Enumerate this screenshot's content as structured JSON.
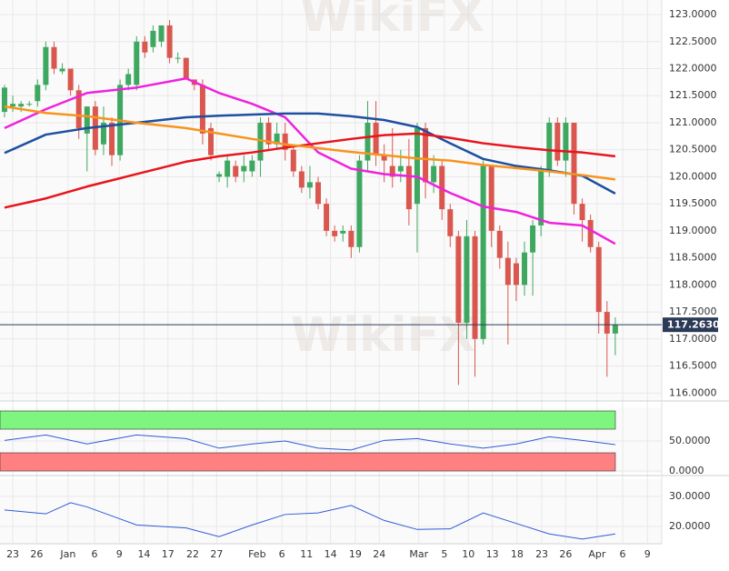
{
  "watermark": "WikiFX",
  "chart_data": [
    {
      "type": "candlestick",
      "x": [
        0,
        1,
        2,
        3,
        4,
        5,
        6,
        7,
        8,
        9,
        10,
        11,
        12,
        13,
        14,
        15,
        16,
        17,
        18,
        19,
        20,
        21,
        22,
        23,
        24,
        25,
        26,
        27,
        28,
        29,
        30,
        31,
        32,
        33,
        34,
        35,
        36,
        37,
        38,
        39,
        40,
        41,
        42,
        43,
        44,
        45,
        46,
        47,
        48,
        49,
        50,
        51,
        52,
        53,
        54,
        55,
        56,
        57,
        58,
        59,
        60,
        61,
        62,
        63,
        64,
        65,
        66,
        67,
        68,
        69,
        70,
        71,
        72,
        73,
        74
      ],
      "open": [
        121.2,
        121.3,
        121.3,
        121.35,
        121.4,
        121.7,
        122.4,
        121.95,
        122.0,
        121.6,
        120.8,
        121.3,
        120.6,
        121.0,
        120.4,
        121.7,
        121.7,
        122.5,
        122.4,
        122.5,
        122.8,
        122.2,
        122.2,
        121.8,
        121.7,
        120.9,
        120.0,
        120.0,
        120.2,
        120.1,
        120.1,
        120.3,
        121.0,
        120.6,
        120.8,
        120.5,
        120.1,
        119.8,
        119.9,
        119.5,
        119.0,
        118.95,
        119.0,
        118.7,
        120.3,
        121.0,
        120.4,
        120.2,
        120.1,
        120.2,
        119.5,
        120.9,
        119.9,
        120.2,
        119.4,
        118.9,
        117.3,
        118.9,
        117.0,
        120.2,
        119.0,
        118.5,
        118.4,
        118.0,
        118.6,
        119.1,
        120.1,
        121.0,
        120.3,
        121.0,
        119.5,
        119.2,
        118.7,
        117.5,
        117.1
      ],
      "high": [
        121.7,
        121.5,
        121.4,
        121.4,
        121.8,
        122.5,
        122.5,
        122.1,
        122.0,
        121.7,
        121.3,
        121.4,
        121.3,
        121.1,
        121.8,
        122.0,
        122.6,
        122.6,
        122.8,
        122.8,
        122.9,
        122.3,
        122.2,
        121.8,
        121.8,
        121.0,
        120.1,
        120.4,
        120.3,
        120.4,
        120.4,
        121.1,
        121.1,
        121.0,
        121.0,
        120.6,
        120.2,
        120.2,
        120.0,
        119.6,
        119.1,
        119.1,
        119.1,
        120.4,
        121.4,
        121.4,
        120.6,
        120.9,
        120.5,
        120.7,
        121.0,
        121.0,
        120.4,
        120.3,
        119.5,
        119.0,
        119.2,
        119.0,
        120.3,
        120.2,
        119.1,
        118.8,
        118.5,
        118.8,
        119.2,
        120.2,
        121.1,
        121.1,
        121.1,
        121.0,
        119.6,
        119.3,
        118.8,
        117.7,
        117.4
      ],
      "low": [
        121.1,
        121.2,
        121.2,
        121.3,
        121.3,
        121.6,
        121.9,
        121.9,
        121.5,
        120.7,
        120.1,
        120.4,
        120.4,
        120.2,
        120.3,
        121.6,
        121.6,
        122.2,
        122.3,
        122.4,
        122.1,
        122.1,
        121.8,
        121.6,
        120.6,
        120.3,
        119.9,
        119.8,
        119.9,
        119.9,
        120.0,
        120.0,
        120.5,
        120.5,
        120.3,
        120.0,
        119.7,
        119.6,
        119.4,
        118.9,
        118.8,
        118.8,
        118.5,
        118.6,
        120.1,
        120.2,
        119.9,
        119.8,
        119.9,
        119.1,
        118.6,
        119.6,
        119.7,
        119.2,
        118.7,
        116.15,
        117.0,
        116.3,
        116.9,
        118.7,
        118.3,
        116.9,
        117.7,
        117.8,
        117.8,
        118.9,
        120.0,
        120.2,
        120.0,
        119.3,
        118.8,
        118.6,
        117.1,
        116.3,
        116.7
      ],
      "close": [
        121.65,
        121.35,
        121.35,
        121.35,
        121.7,
        122.4,
        122.0,
        122.0,
        121.6,
        120.9,
        121.3,
        120.5,
        121.0,
        120.4,
        121.7,
        121.9,
        122.5,
        122.3,
        122.7,
        122.8,
        122.2,
        122.2,
        121.8,
        121.7,
        120.8,
        120.4,
        120.05,
        120.3,
        120.0,
        120.2,
        120.3,
        121.0,
        120.6,
        120.8,
        120.5,
        120.1,
        119.8,
        119.9,
        119.5,
        119.0,
        118.9,
        119.0,
        118.7,
        120.3,
        121.0,
        120.4,
        120.3,
        120.0,
        120.2,
        119.4,
        120.9,
        119.9,
        120.2,
        119.4,
        118.9,
        117.3,
        118.9,
        117.0,
        120.2,
        119.0,
        118.5,
        118.0,
        118.0,
        118.6,
        119.1,
        120.1,
        121.0,
        120.3,
        121.0,
        119.5,
        119.2,
        118.7,
        117.5,
        117.1,
        117.263
      ],
      "up_color": "#3fa860",
      "down_color": "#d9574e",
      "series": [
        {
          "color": "#ee22dd",
          "x": [
            0,
            5,
            10,
            16,
            22,
            26,
            30,
            34,
            38,
            42,
            46,
            50,
            54,
            58,
            62,
            66,
            70,
            74
          ],
          "values": [
            120.9,
            121.25,
            121.55,
            121.65,
            121.82,
            121.55,
            121.35,
            121.1,
            120.45,
            120.15,
            120.05,
            120.0,
            119.7,
            119.45,
            119.35,
            119.15,
            119.1,
            118.76
          ]
        },
        {
          "color": "#1e4fa0",
          "x": [
            0,
            5,
            10,
            16,
            22,
            26,
            30,
            34,
            38,
            42,
            46,
            50,
            54,
            58,
            62,
            66,
            70,
            74
          ],
          "values": [
            120.44,
            120.78,
            120.9,
            121.0,
            121.1,
            121.13,
            121.15,
            121.17,
            121.17,
            121.12,
            121.05,
            120.92,
            120.62,
            120.33,
            120.2,
            120.12,
            120.02,
            119.69
          ]
        },
        {
          "color": "#e8141c",
          "x": [
            0,
            5,
            10,
            16,
            22,
            26,
            30,
            34,
            38,
            42,
            46,
            50,
            54,
            58,
            62,
            66,
            70,
            74
          ],
          "values": [
            119.43,
            119.6,
            119.82,
            120.05,
            120.28,
            120.38,
            120.45,
            120.54,
            120.62,
            120.7,
            120.77,
            120.8,
            120.72,
            120.62,
            120.55,
            120.49,
            120.45,
            120.38
          ]
        },
        {
          "color": "#f7941d",
          "x": [
            0,
            5,
            10,
            16,
            22,
            26,
            30,
            34,
            38,
            42,
            46,
            50,
            54,
            58,
            62,
            66,
            70,
            74
          ],
          "values": [
            121.3,
            121.18,
            121.12,
            121.0,
            120.9,
            120.8,
            120.7,
            120.6,
            120.53,
            120.46,
            120.4,
            120.34,
            120.3,
            120.22,
            120.16,
            120.1,
            120.03,
            119.95
          ]
        }
      ],
      "last_price": {
        "value": 117.263,
        "label": "117.2630"
      },
      "xlim": [
        -0.55,
        79.63
      ],
      "ylim": [
        115.87,
        123.27
      ],
      "yticks": [
        {
          "value": 116,
          "label": "116.0000"
        },
        {
          "value": 116.5,
          "label": "116.5000"
        },
        {
          "value": 117,
          "label": "117.0000"
        },
        {
          "value": 117.5,
          "label": "117.5000"
        },
        {
          "value": 118,
          "label": "118.0000"
        },
        {
          "value": 118.5,
          "label": "118.5000"
        },
        {
          "value": 119,
          "label": "119.0000"
        },
        {
          "value": 119.5,
          "label": "119.5000"
        },
        {
          "value": 120,
          "label": "120.0000"
        },
        {
          "value": 120.5,
          "label": "120.5000"
        },
        {
          "value": 121,
          "label": "121.0000"
        },
        {
          "value": 121.5,
          "label": "121.5000"
        },
        {
          "value": 122,
          "label": "122.0000"
        },
        {
          "value": 122.5,
          "label": "122.5000"
        },
        {
          "value": 123,
          "label": "123.0000"
        }
      ],
      "grid": true
    },
    {
      "type": "line",
      "color": "#2e5bd6",
      "x": [
        0,
        5,
        10,
        16,
        22,
        26,
        30,
        34,
        38,
        42,
        46,
        50,
        54,
        58,
        62,
        66,
        70,
        74
      ],
      "values": [
        51,
        60,
        45,
        60,
        54,
        38,
        45,
        50,
        38,
        35,
        51,
        54,
        45,
        38,
        45,
        57,
        51,
        44
      ],
      "xlim": [
        -0.55,
        79.63
      ],
      "ylim": [
        -3,
        106
      ],
      "yticks": [
        {
          "value": 0,
          "label": "0.0000"
        },
        {
          "value": 50,
          "label": "50.0000"
        }
      ],
      "grid": true
    },
    {
      "type": "line",
      "color": "#2e5bd6",
      "x": [
        0,
        5,
        8,
        10,
        16,
        22,
        26,
        30,
        34,
        38,
        42,
        46,
        50,
        54,
        58,
        62,
        66,
        70,
        74
      ],
      "values": [
        25.5,
        24.2,
        27.9,
        26.5,
        20.5,
        19.5,
        16.6,
        20.5,
        24,
        24.5,
        27,
        22,
        19,
        19.2,
        24.5,
        21,
        17.5,
        15.8,
        17.5
      ],
      "xlim": [
        -0.55,
        79.63
      ],
      "ylim": [
        14.55,
        35.76
      ],
      "yticks": [
        {
          "value": 20,
          "label": "20.0000"
        },
        {
          "value": 30,
          "label": "30.0000"
        }
      ],
      "xticks": [
        {
          "value": 1,
          "label": "23"
        },
        {
          "value": 3.9,
          "label": "26"
        },
        {
          "value": 7.7,
          "label": "Jan"
        },
        {
          "value": 10.9,
          "label": "6"
        },
        {
          "value": 13.9,
          "label": "9"
        },
        {
          "value": 16.9,
          "label": "14"
        },
        {
          "value": 19.8,
          "label": "17"
        },
        {
          "value": 22.8,
          "label": "22"
        },
        {
          "value": 25.7,
          "label": "27"
        },
        {
          "value": 30.6,
          "label": "Feb"
        },
        {
          "value": 33.6,
          "label": "6"
        },
        {
          "value": 36.6,
          "label": "11"
        },
        {
          "value": 39.5,
          "label": "14"
        },
        {
          "value": 42.5,
          "label": "19"
        },
        {
          "value": 45.4,
          "label": "24"
        },
        {
          "value": 50.2,
          "label": "Mar"
        },
        {
          "value": 53.3,
          "label": "5"
        },
        {
          "value": 56.2,
          "label": "10"
        },
        {
          "value": 59.1,
          "label": "13"
        },
        {
          "value": 62.1,
          "label": "18"
        },
        {
          "value": 65.1,
          "label": "23"
        },
        {
          "value": 68,
          "label": "26"
        },
        {
          "value": 71.8,
          "label": "Apr"
        },
        {
          "value": 74.9,
          "label": "6"
        },
        {
          "value": 77.9,
          "label": "9"
        }
      ],
      "grid": true
    }
  ]
}
